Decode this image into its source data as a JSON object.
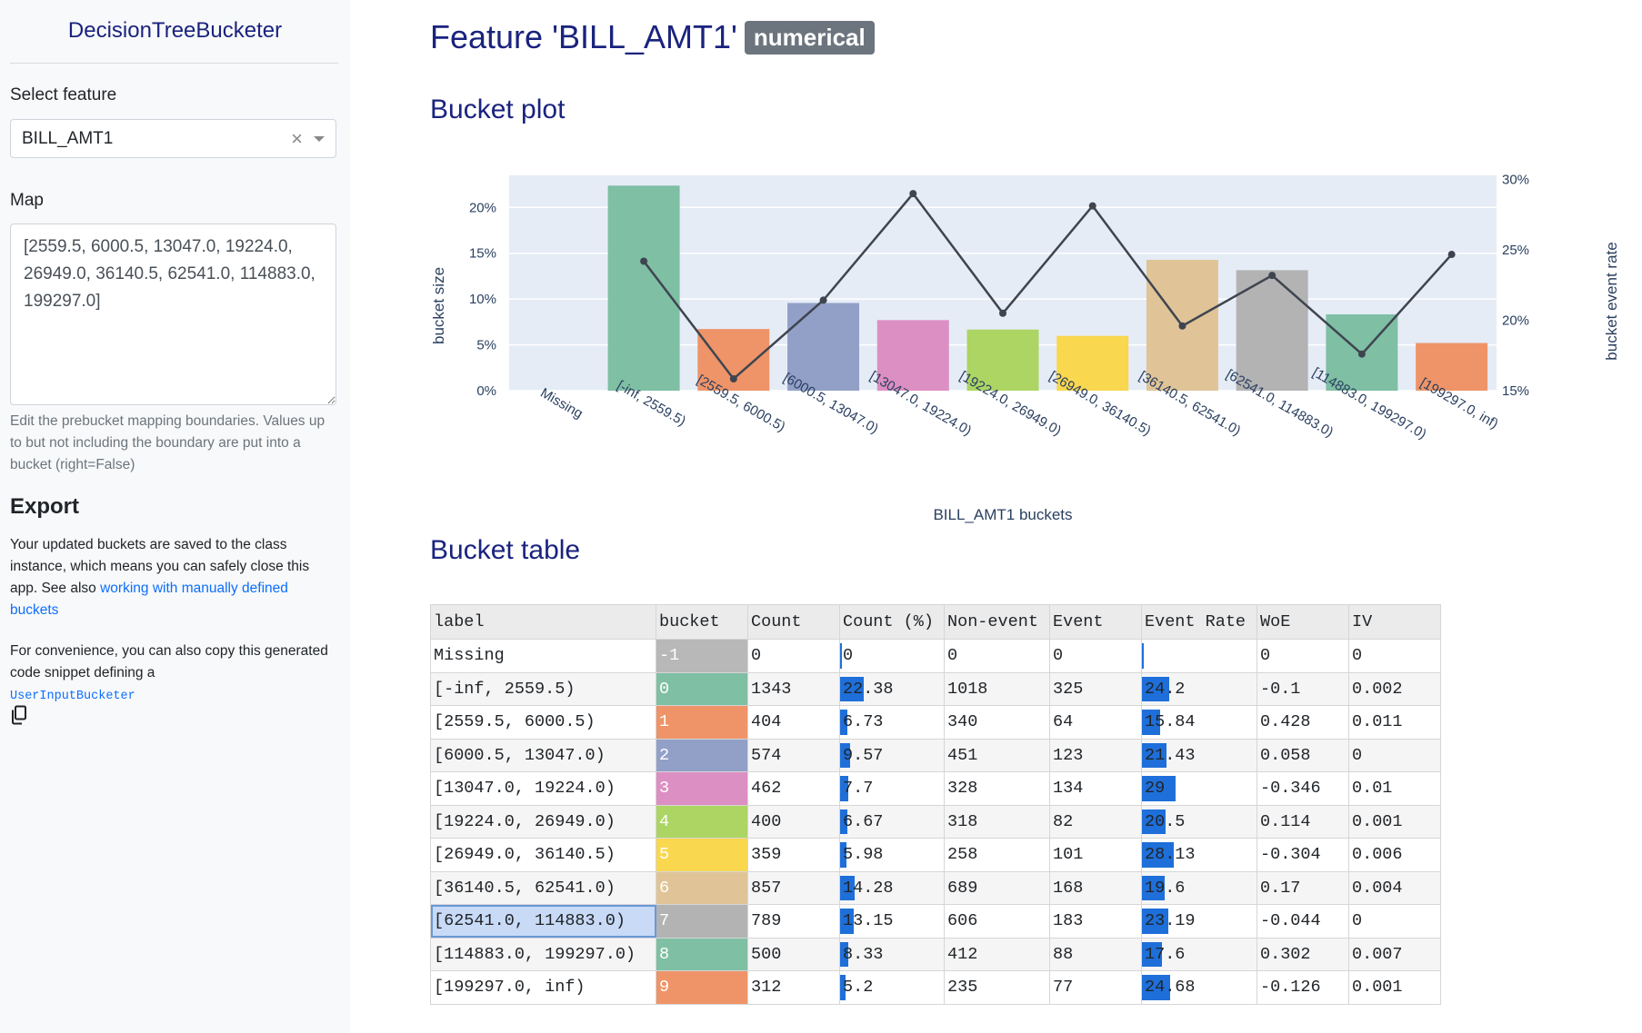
{
  "sidebar": {
    "title": "DecisionTreeBucketer",
    "select_label": "Select feature",
    "selected_feature": "BILL_AMT1",
    "clear_symbol": "×",
    "map_label": "Map",
    "map_value": "[2559.5, 6000.5, 13047.0, 19224.0, 26949.0, 36140.5, 62541.0, 114883.0, 199297.0]",
    "help_text": "Edit the prebucket mapping boundaries. Values up to but not including the boundary are put into a bucket (right=False)",
    "export_heading": "Export",
    "export_text_1": "Your updated buckets are saved to the class instance, which means you can safely close this app. See also ",
    "export_link": "working with manually defined buckets",
    "export_text_2": "For convenience, you can also copy this generated code snippet defining a",
    "export_code": "UserInputBucketer"
  },
  "main": {
    "title": "Feature 'BILL_AMT1'",
    "badge": "numerical",
    "plot_heading": "Bucket plot",
    "table_heading": "Bucket table"
  },
  "chart_data": {
    "type": "bar",
    "xlabel": "BILL_AMT1 buckets",
    "ylabel": "bucket size",
    "y2label": "bucket event rate",
    "categories": [
      "Missing",
      "[-inf, 2559.5)",
      "[2559.5, 6000.5)",
      "[6000.5, 13047.0)",
      "[13047.0, 19224.0)",
      "[19224.0, 26949.0)",
      "[26949.0, 36140.5)",
      "[36140.5, 62541.0)",
      "[62541.0, 114883.0)",
      "[114883.0, 199297.0)",
      "[199297.0, inf)"
    ],
    "series": [
      {
        "values": [
          0,
          22.38,
          6.73,
          9.57,
          7.7,
          6.67,
          5.98,
          14.28,
          13.15,
          8.33,
          5.2
        ],
        "axis": "left",
        "kind": "bar"
      },
      {
        "values": [
          null,
          24.2,
          15.84,
          21.43,
          29,
          20.5,
          28.13,
          19.6,
          23.19,
          17.6,
          24.68
        ],
        "axis": "right",
        "kind": "line"
      }
    ],
    "bar_colors": [
      "#7fbfa4",
      "#7fbfa4",
      "#ee9468",
      "#92a0c8",
      "#dc8fc2",
      "#acd563",
      "#f9d74f",
      "#e0c497",
      "#b3b3b3",
      "#7fbfa4",
      "#ee9468"
    ],
    "ylim": [
      0,
      23.5
    ],
    "y2lim": [
      15,
      30.3
    ],
    "yticks": [
      "0%",
      "5%",
      "10%",
      "15%",
      "20%"
    ],
    "y2ticks": [
      "15%",
      "20%",
      "25%",
      "30%"
    ],
    "grid": true,
    "plot_bg": "#e5ecf6",
    "line_color": "#3f4550"
  },
  "table": {
    "headers": [
      "label",
      "bucket",
      "Count",
      "Count (%)",
      "Non-event",
      "Event",
      "Event Rate",
      "WoE",
      "IV"
    ],
    "rows": [
      {
        "label": "Missing",
        "bucket": "-1",
        "count": "0",
        "count_pct": "0",
        "non_event": "0",
        "event": "0",
        "event_rate": "",
        "woe": "0",
        "iv": "0",
        "color": "#b8b8b8",
        "pct_val": 0,
        "er_val": 0
      },
      {
        "label": "[-inf, 2559.5)",
        "bucket": "0",
        "count": "1343",
        "count_pct": "22.38",
        "non_event": "1018",
        "event": "325",
        "event_rate": "24.2",
        "woe": "-0.1",
        "iv": "0.002",
        "color": "#7fbfa4",
        "pct_val": 22.38,
        "er_val": 24.2
      },
      {
        "label": "[2559.5, 6000.5)",
        "bucket": "1",
        "count": "404",
        "count_pct": "6.73",
        "non_event": "340",
        "event": "64",
        "event_rate": "15.84",
        "woe": "0.428",
        "iv": "0.011",
        "color": "#ee9468",
        "pct_val": 6.73,
        "er_val": 15.84
      },
      {
        "label": "[6000.5, 13047.0)",
        "bucket": "2",
        "count": "574",
        "count_pct": "9.57",
        "non_event": "451",
        "event": "123",
        "event_rate": "21.43",
        "woe": "0.058",
        "iv": "0",
        "color": "#92a0c8",
        "pct_val": 9.57,
        "er_val": 21.43
      },
      {
        "label": "[13047.0, 19224.0)",
        "bucket": "3",
        "count": "462",
        "count_pct": "7.7",
        "non_event": "328",
        "event": "134",
        "event_rate": "29",
        "woe": "-0.346",
        "iv": "0.01",
        "color": "#dc8fc2",
        "pct_val": 7.7,
        "er_val": 29
      },
      {
        "label": "[19224.0, 26949.0)",
        "bucket": "4",
        "count": "400",
        "count_pct": "6.67",
        "non_event": "318",
        "event": "82",
        "event_rate": "20.5",
        "woe": "0.114",
        "iv": "0.001",
        "color": "#acd563",
        "pct_val": 6.67,
        "er_val": 20.5
      },
      {
        "label": "[26949.0, 36140.5)",
        "bucket": "5",
        "count": "359",
        "count_pct": "5.98",
        "non_event": "258",
        "event": "101",
        "event_rate": "28.13",
        "woe": "-0.304",
        "iv": "0.006",
        "color": "#f9d74f",
        "pct_val": 5.98,
        "er_val": 28.13
      },
      {
        "label": "[36140.5, 62541.0)",
        "bucket": "6",
        "count": "857",
        "count_pct": "14.28",
        "non_event": "689",
        "event": "168",
        "event_rate": "19.6",
        "woe": "0.17",
        "iv": "0.004",
        "color": "#e0c497",
        "pct_val": 14.28,
        "er_val": 19.6
      },
      {
        "label": "[62541.0, 114883.0)",
        "bucket": "7",
        "count": "789",
        "count_pct": "13.15",
        "non_event": "606",
        "event": "183",
        "event_rate": "23.19",
        "woe": "-0.044",
        "iv": "0",
        "color": "#b3b3b3",
        "pct_val": 13.15,
        "er_val": 23.19,
        "selected": true
      },
      {
        "label": "[114883.0, 199297.0)",
        "bucket": "8",
        "count": "500",
        "count_pct": "8.33",
        "non_event": "412",
        "event": "88",
        "event_rate": "17.6",
        "woe": "0.302",
        "iv": "0.007",
        "color": "#7fbfa4",
        "pct_val": 8.33,
        "er_val": 17.6
      },
      {
        "label": "[199297.0, inf)",
        "bucket": "9",
        "count": "312",
        "count_pct": "5.2",
        "non_event": "235",
        "event": "77",
        "event_rate": "24.68",
        "woe": "-0.126",
        "iv": "0.001",
        "color": "#ee9468",
        "pct_val": 5.2,
        "er_val": 24.68
      }
    ],
    "bar_color": "#1e6fd9"
  }
}
